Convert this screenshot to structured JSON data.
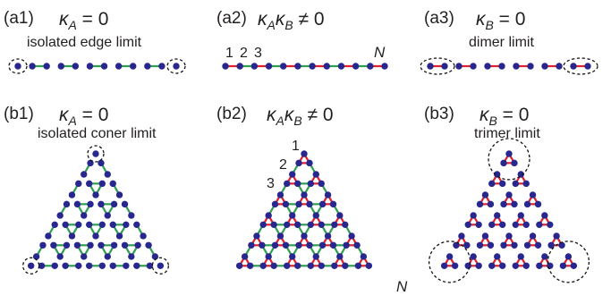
{
  "colors": {
    "site": "#27278f",
    "bond_a": "#2e9e4f",
    "bond_b": "#e0202a",
    "text": "#231f20"
  },
  "panels": {
    "a1": {
      "label": "(a1)",
      "kappa_sym": "κ",
      "kappa_sub": "A",
      "relation": " = 0",
      "caption": "isolated edge limit"
    },
    "a2": {
      "label": "(a2)",
      "kappa_sym": "κ",
      "kappa_sub": "A",
      "kappa_sym2": "κ",
      "kappa_sub2": "B",
      "relation": " ≠ 0",
      "site_labels": [
        "1",
        "2",
        "3"
      ],
      "end_label": "N"
    },
    "a3": {
      "label": "(a3)",
      "kappa_sym": "κ",
      "kappa_sub": "B",
      "relation": " = 0",
      "caption": "dimer limit"
    },
    "b1": {
      "label": "(b1)",
      "kappa_sym": "κ",
      "kappa_sub": "A",
      "relation": " = 0",
      "caption": "isolated coner limit"
    },
    "b2": {
      "label": "(b2)",
      "kappa_sym": "κ",
      "kappa_sub": "A",
      "kappa_sym2": "κ",
      "kappa_sub2": "B",
      "relation": " ≠ 0",
      "site_labels": [
        "1",
        "2",
        "3"
      ],
      "end_label": "N"
    },
    "b3": {
      "label": "(b3)",
      "kappa_sym": "κ",
      "kappa_sub": "B",
      "relation": " = 0",
      "caption": "trimer limit"
    }
  }
}
